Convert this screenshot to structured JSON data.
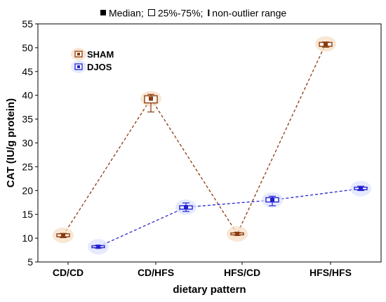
{
  "legend_top": {
    "median": "Median;",
    "iqr": "25%-75%;",
    "range": "non-outlier range"
  },
  "colors": {
    "sham": "#8B3A0E",
    "djos": "#2020D0",
    "sham_fill": "#F5DFC5",
    "djos_fill": "#DDE3FF"
  },
  "chart_data": {
    "type": "box",
    "title": "",
    "xlabel": "dietary pattern",
    "ylabel": "CAT (IU/g protein)",
    "categories": [
      "CD/CD",
      "CD/HFS",
      "HFS/CD",
      "HFS/HFS"
    ],
    "ylim": [
      5,
      55
    ],
    "yticks": [
      5,
      10,
      15,
      20,
      25,
      30,
      35,
      40,
      45,
      50,
      55
    ],
    "grid": false,
    "legend_position": "top-left",
    "series": [
      {
        "name": "SHAM",
        "median": [
          10.6,
          39.3,
          10.9,
          50.8
        ],
        "q1": [
          10.3,
          38.4,
          10.7,
          50.3
        ],
        "q3": [
          10.9,
          39.9,
          11.1,
          51.1
        ],
        "min": [
          10.1,
          36.5,
          10.6,
          50.1
        ],
        "max": [
          11.0,
          40.2,
          11.2,
          51.2
        ]
      },
      {
        "name": "DJOS",
        "median": [
          8.2,
          16.5,
          18.0,
          20.4
        ],
        "q1": [
          8.0,
          16.1,
          17.6,
          20.2
        ],
        "q3": [
          8.4,
          16.8,
          18.5,
          20.7
        ],
        "min": [
          7.9,
          15.6,
          16.8,
          20.0
        ],
        "max": [
          8.5,
          17.4,
          18.8,
          20.9
        ]
      }
    ]
  }
}
